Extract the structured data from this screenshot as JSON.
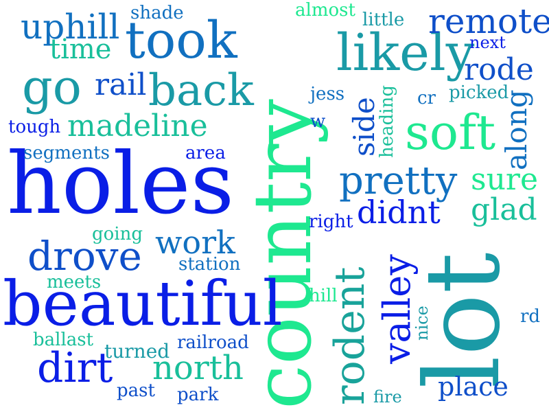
{
  "words": {
    "country": "country",
    "holes": "holes",
    "lot": "lot",
    "beautiful": "beautiful",
    "took": "took",
    "likely": "likely",
    "soft": "soft",
    "back": "back",
    "go": "go",
    "pretty": "pretty",
    "drove": "drove",
    "remote": "remote",
    "uphill": "uphill",
    "rodent": "rodent",
    "dirt": "dirt",
    "madeline": "madeline",
    "rode": "rode",
    "valley": "valley",
    "time": "time",
    "rail": "rail",
    "work": "work",
    "north": "north",
    "didnt": "didnt",
    "sure": "sure",
    "glad": "glad",
    "along": "along",
    "side": "side",
    "place": "place",
    "shade": "shade",
    "almost": "almost",
    "little": "little",
    "next": "next",
    "tough": "tough",
    "segments": "segments",
    "area": "area",
    "jess": "jess",
    "heading": "heading",
    "cr": "cr",
    "picked": "picked",
    "w": "w",
    "right": "right",
    "going": "going",
    "station": "station",
    "meets": "meets",
    "hill": "hill",
    "nice": "nice",
    "rd": "rd",
    "ballast": "ballast",
    "turned": "turned",
    "railroad": "railroad",
    "past": "past",
    "park": "park",
    "fire": "fire"
  },
  "colors": {
    "deep_blue": "#0a1ee6",
    "royal_blue": "#0f4fc9",
    "steel_blue": "#1170c0",
    "teal": "#1a9aa6",
    "sea_green": "#19bf9a",
    "mint": "#1ee890",
    "navy": "#1633d6"
  }
}
